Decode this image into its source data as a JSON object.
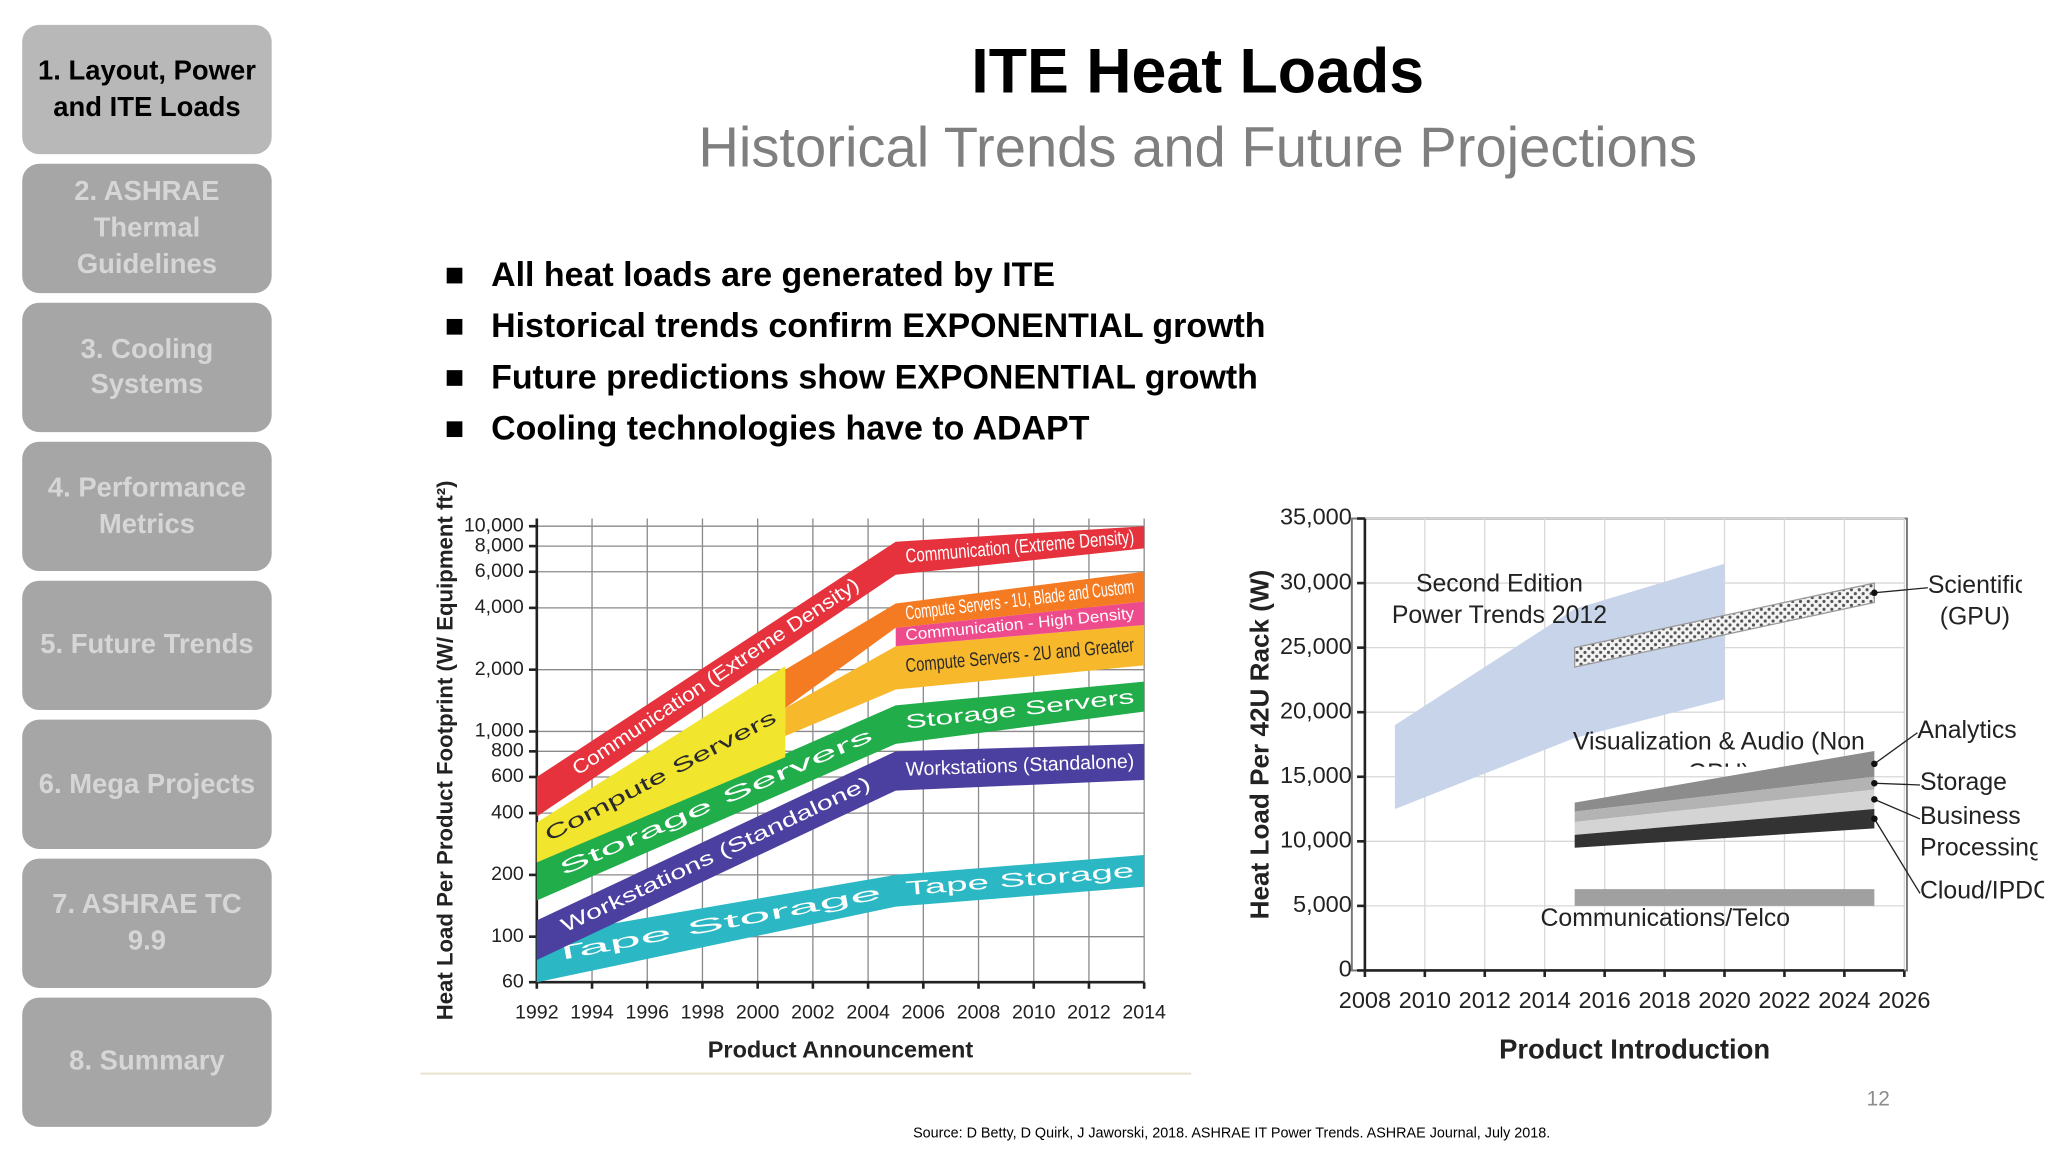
{
  "sidebar": {
    "active": 0,
    "items": [
      "1. Layout, Power and ITE Loads",
      "2. ASHRAE Thermal Guidelines",
      "3. Cooling Systems",
      "4. Performance Metrics",
      "5. Future Trends",
      "6. Mega Projects",
      "7. ASHRAE TC 9.9",
      "8. Summary"
    ]
  },
  "header": {
    "title": "ITE Heat Loads",
    "subtitle": "Historical Trends and Future Projections"
  },
  "bullets": [
    "All heat loads are generated by ITE",
    "Historical trends confirm EXPONENTIAL growth",
    "Future predictions show EXPONENTIAL growth",
    "Cooling technologies have to ADAPT"
  ],
  "chart_data": [
    {
      "type": "band",
      "x_label": "Product Announcement",
      "y_label": "Heat Load Per Product Footprint (W/ Equipment ft²)",
      "xlim": [
        1992,
        2014
      ],
      "xticks": [
        1992,
        1994,
        1996,
        1998,
        2000,
        2002,
        2004,
        2006,
        2008,
        2010,
        2012,
        2014
      ],
      "ylim": [
        60,
        10900
      ],
      "log_scale": true,
      "yticks": [
        60,
        100,
        200,
        400,
        600,
        800,
        {
          "value": 1000,
          "label": "1,000"
        },
        {
          "value": 2000,
          "label": "2,000"
        },
        {
          "value": 4000,
          "label": "4,000"
        },
        {
          "value": 6000,
          "label": "6,000"
        },
        {
          "value": 8000,
          "label": "8,000"
        },
        {
          "value": 10000,
          "label": "10,000"
        }
      ],
      "grid": true,
      "series": [
        {
          "name": "Tape Storage",
          "color": "#2bb8c4",
          "x": [
            1992,
            2005,
            2014
          ],
          "low": [
            60,
            140,
            175
          ],
          "high": [
            100,
            200,
            250
          ]
        },
        {
          "name": "Workstations (Standalone)",
          "color": "#4b3f9f",
          "x": [
            1992,
            2005,
            2014
          ],
          "low": [
            77,
            515,
            580
          ],
          "high": [
            120,
            800,
            870
          ]
        },
        {
          "name": "Storage Servers",
          "color": "#22ad4b",
          "x": [
            1992,
            2005,
            2014
          ],
          "low": [
            150,
            870,
            1250
          ],
          "high": [
            230,
            1340,
            1750
          ]
        },
        {
          "name": "Compute Servers",
          "color": "#f1e52e",
          "x": [
            1992,
            2001
          ],
          "low": [
            230,
            750
          ],
          "high": [
            360,
            2080
          ]
        },
        {
          "name": "Compute Servers - 2U and Greater",
          "color": "#f7b82c",
          "x": [
            2001,
            2005,
            2014
          ],
          "low": [
            950,
            1600,
            2100
          ],
          "high": [
            1300,
            2600,
            3300
          ]
        },
        {
          "name": "Communication - High Density",
          "color": "#ee4b8c",
          "x": [
            2005,
            2014
          ],
          "low": [
            2600,
            3300
          ],
          "high": [
            3200,
            4300
          ]
        },
        {
          "name": "Compute Servers - 1U, Blade and Custom",
          "color": "#f47b21",
          "x": [
            2001,
            2005,
            2014
          ],
          "low": [
            1300,
            3200,
            4300
          ],
          "high": [
            2000,
            4200,
            6000
          ]
        },
        {
          "name": "Communication (Extreme Density)",
          "color": "#e5323d",
          "x": [
            1992,
            2005,
            2014
          ],
          "low": [
            385,
            5800,
            7800
          ],
          "high": [
            600,
            8400,
            10000
          ]
        }
      ]
    },
    {
      "type": "band",
      "x_label": "Product Introduction",
      "y_label": "Heat Load Per 42U Rack (W)",
      "xlim": [
        2008,
        2026
      ],
      "xticks": [
        2008,
        2010,
        2012,
        2014,
        2016,
        2018,
        2020,
        2022,
        2024,
        2026
      ],
      "ylim": [
        0,
        35000
      ],
      "log_scale": false,
      "yticks": [
        0,
        {
          "value": 5000,
          "label": "5,000"
        },
        {
          "value": 10000,
          "label": "10,000"
        },
        {
          "value": 15000,
          "label": "15,000"
        },
        {
          "value": 20000,
          "label": "20,000"
        },
        {
          "value": 25000,
          "label": "25,000"
        },
        {
          "value": 30000,
          "label": "30,000"
        },
        {
          "value": 35000,
          "label": "35,000"
        }
      ],
      "grid": true,
      "annotations": [
        "Visualization & Audio (Non GPU)"
      ],
      "series": [
        {
          "name": "Second Edition Power Trends 2012",
          "color": "#c7d4ea",
          "x": [
            2009,
            2015,
            2020
          ],
          "low": [
            12500,
            18000,
            21000
          ],
          "high": [
            19000,
            28000,
            31500
          ]
        },
        {
          "name": "Scientific (GPU)",
          "color": "#9a9a9a",
          "hatch": true,
          "x": [
            2015,
            2025
          ],
          "low": [
            23500,
            28500
          ],
          "high": [
            25000,
            30000
          ]
        },
        {
          "name": "Analytics",
          "color": "#8c8c8c",
          "x": [
            2015,
            2025
          ],
          "low": [
            12300,
            15000
          ],
          "high": [
            13000,
            17000
          ]
        },
        {
          "name": "Storage",
          "color": "#b3b3b3",
          "x": [
            2015,
            2025
          ],
          "low": [
            11500,
            14000
          ],
          "high": [
            12300,
            15000
          ]
        },
        {
          "name": "Business Processing",
          "color": "#d4d4d4",
          "x": [
            2015,
            2025
          ],
          "low": [
            10500,
            12500
          ],
          "high": [
            11500,
            14000
          ]
        },
        {
          "name": "Cloud/IPDC",
          "color": "#333333",
          "x": [
            2015,
            2025
          ],
          "low": [
            9500,
            11000
          ],
          "high": [
            10500,
            12500
          ]
        },
        {
          "name": "Communications/Telco",
          "color": "#a0a0a0",
          "x": [
            2015,
            2025
          ],
          "low": [
            5000,
            5000
          ],
          "high": [
            6300,
            6300
          ]
        }
      ]
    }
  ],
  "page_number": 12,
  "source": "Source: D Betty, D Quirk, J Jaworski, 2018. ASHRAE IT Power Trends. ASHRAE Journal, July 2018."
}
